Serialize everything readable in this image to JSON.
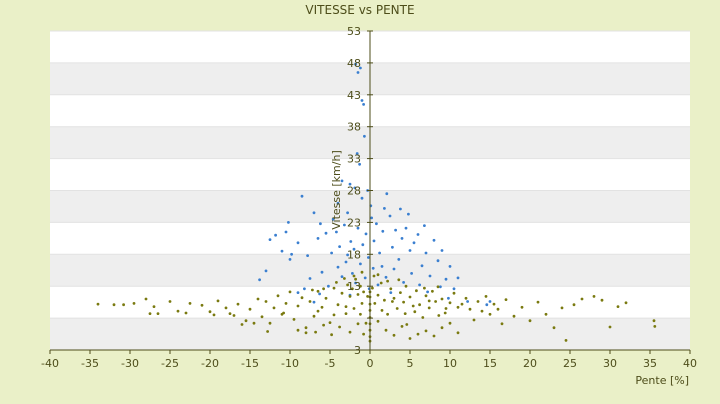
{
  "chart_data": {
    "type": "scatter",
    "title": "VITESSE vs PENTE",
    "xlabel": "Pente [%]",
    "ylabel": "Vitesse [km/h]",
    "xlim": [
      -40,
      40
    ],
    "ylim": [
      3,
      53
    ],
    "x_ticks": [
      -40,
      -35,
      -30,
      -25,
      -20,
      -15,
      -10,
      -5,
      0,
      5,
      10,
      15,
      20,
      25,
      30,
      35,
      40
    ],
    "y_ticks": [
      3,
      8,
      13,
      18,
      23,
      28,
      33,
      38,
      43,
      48,
      53
    ],
    "y_tick_labels": [
      "3",
      "",
      "13",
      "18",
      "23",
      "28",
      "33",
      "38",
      "43",
      "48",
      "53"
    ],
    "grid": "horizontal bands",
    "legend": "none",
    "colors": {
      "blue_series": "#3a7fd0",
      "olive_series": "#7a7a10",
      "band": "#eeeeee",
      "background": "#eaf0c8"
    },
    "series": [
      {
        "values": [
          [
            -1.8,
            47.8
          ],
          [
            -1.5,
            46.5
          ],
          [
            -1.2,
            47.2
          ],
          [
            -0.8,
            41.5
          ],
          [
            -1.0,
            42.1
          ],
          [
            -0.7,
            36.5
          ],
          [
            -1.6,
            33.8
          ],
          [
            -1.3,
            32.1
          ],
          [
            -2.5,
            29.0
          ],
          [
            -1.9,
            28.4
          ],
          [
            -8.5,
            27.1
          ],
          [
            -7.0,
            24.5
          ],
          [
            -10.2,
            23.0
          ],
          [
            -10.5,
            21.5
          ],
          [
            -11.8,
            21.0
          ],
          [
            -12.5,
            20.3
          ],
          [
            -9.0,
            19.8
          ],
          [
            -9.8,
            18.0
          ],
          [
            -11.0,
            18.5
          ],
          [
            -10.0,
            17.2
          ],
          [
            -7.8,
            17.8
          ],
          [
            -6.2,
            22.8
          ],
          [
            -6.5,
            20.5
          ],
          [
            -5.5,
            21.3
          ],
          [
            -4.0,
            26.0
          ],
          [
            -4.6,
            23.5
          ],
          [
            -4.2,
            21.5
          ],
          [
            -3.8,
            19.2
          ],
          [
            -3.2,
            22.6
          ],
          [
            -2.8,
            24.5
          ],
          [
            -2.4,
            20.0
          ],
          [
            -2.0,
            18.8
          ],
          [
            -1.5,
            22.1
          ],
          [
            -0.9,
            19.5
          ],
          [
            -0.5,
            21.2
          ],
          [
            -0.2,
            17.5
          ],
          [
            0.1,
            25.6
          ],
          [
            0.5,
            20.1
          ],
          [
            0.8,
            22.8
          ],
          [
            1.2,
            18.2
          ],
          [
            1.6,
            21.6
          ],
          [
            2.1,
            27.5
          ],
          [
            2.5,
            24.0
          ],
          [
            2.8,
            19.1
          ],
          [
            3.2,
            21.8
          ],
          [
            3.6,
            17.2
          ],
          [
            4.0,
            20.5
          ],
          [
            4.5,
            22.1
          ],
          [
            5.0,
            18.6
          ],
          [
            5.5,
            19.8
          ],
          [
            6.0,
            21.1
          ],
          [
            6.5,
            16.2
          ],
          [
            7.0,
            18.2
          ],
          [
            7.5,
            14.6
          ],
          [
            8.0,
            20.2
          ],
          [
            8.5,
            17.0
          ],
          [
            9.0,
            18.6
          ],
          [
            9.5,
            14.1
          ],
          [
            10.0,
            16.1
          ],
          [
            10.5,
            12.6
          ],
          [
            11.0,
            14.3
          ],
          [
            15.0,
            10.6
          ],
          [
            14.6,
            10.1
          ],
          [
            12.2,
            10.6
          ],
          [
            -4.0,
            16.0
          ],
          [
            -3.5,
            14.5
          ],
          [
            -3.0,
            16.8
          ],
          [
            -2.2,
            15.0
          ],
          [
            -1.8,
            13.5
          ],
          [
            -1.2,
            16.5
          ],
          [
            -0.6,
            14.3
          ],
          [
            0.4,
            15.8
          ],
          [
            1.0,
            13.2
          ],
          [
            1.5,
            16.1
          ],
          [
            2.0,
            14.4
          ],
          [
            3.0,
            15.7
          ],
          [
            4.2,
            13.6
          ],
          [
            5.2,
            15.0
          ],
          [
            6.2,
            13.2
          ],
          [
            7.2,
            12.1
          ],
          [
            -6.0,
            15.2
          ],
          [
            -7.5,
            14.2
          ],
          [
            -8.2,
            12.6
          ],
          [
            -9.0,
            12.0
          ],
          [
            -5.2,
            13.0
          ],
          [
            -13.0,
            15.4
          ],
          [
            -13.8,
            14.0
          ],
          [
            -4.8,
            18.2
          ],
          [
            -2.8,
            17.9
          ],
          [
            -1.0,
            26.8
          ],
          [
            0.2,
            23.7
          ],
          [
            1.8,
            25.2
          ],
          [
            -3.5,
            29.5
          ],
          [
            -0.3,
            28.0
          ],
          [
            3.8,
            25.1
          ],
          [
            4.8,
            24.3
          ],
          [
            6.8,
            22.5
          ],
          [
            2.6,
            12.0
          ],
          [
            -2.5,
            11.6
          ],
          [
            -0.1,
            12.6
          ],
          [
            8.8,
            12.9
          ],
          [
            9.8,
            11.1
          ],
          [
            -7.0,
            10.5
          ],
          [
            -6.3,
            11.8
          ]
        ]
      },
      {
        "values": [
          [
            -34.0,
            10.2
          ],
          [
            -32.0,
            10.1
          ],
          [
            -29.5,
            10.3
          ],
          [
            -28.0,
            11.0
          ],
          [
            -27.0,
            9.8
          ],
          [
            -26.5,
            8.7
          ],
          [
            -25.0,
            10.6
          ],
          [
            -24.0,
            9.1
          ],
          [
            -22.5,
            10.3
          ],
          [
            -21.0,
            10.0
          ],
          [
            -20.0,
            9.0
          ],
          [
            -19.0,
            10.7
          ],
          [
            -18.0,
            9.6
          ],
          [
            -17.0,
            8.4
          ],
          [
            -16.5,
            10.2
          ],
          [
            -15.5,
            7.6
          ],
          [
            -15.0,
            9.4
          ],
          [
            -14.0,
            11.0
          ],
          [
            -13.5,
            8.2
          ],
          [
            -13.0,
            10.6
          ],
          [
            -12.5,
            7.2
          ],
          [
            -12.0,
            9.6
          ],
          [
            -11.5,
            11.5
          ],
          [
            -11.0,
            8.6
          ],
          [
            -10.5,
            10.3
          ],
          [
            -10.0,
            12.1
          ],
          [
            -9.5,
            7.8
          ],
          [
            -9.0,
            9.9
          ],
          [
            -8.5,
            11.2
          ],
          [
            -8.0,
            6.5
          ],
          [
            -7.5,
            10.6
          ],
          [
            -7.0,
            8.3
          ],
          [
            -6.5,
            12.2
          ],
          [
            -6.0,
            9.7
          ],
          [
            -5.5,
            11.1
          ],
          [
            -5.0,
            7.3
          ],
          [
            -4.5,
            12.7
          ],
          [
            -4.0,
            10.1
          ],
          [
            -3.5,
            11.9
          ],
          [
            -3.0,
            8.7
          ],
          [
            -2.8,
            13.2
          ],
          [
            -2.5,
            11.4
          ],
          [
            -2.2,
            12.6
          ],
          [
            -2.0,
            9.5
          ],
          [
            -1.8,
            14.1
          ],
          [
            -1.5,
            11.7
          ],
          [
            -1.2,
            13.0
          ],
          [
            -1.0,
            10.3
          ],
          [
            -0.8,
            12.1
          ],
          [
            -0.5,
            7.2
          ],
          [
            -0.3,
            11.4
          ],
          [
            0.0,
            9.2
          ],
          [
            0.0,
            8.1
          ],
          [
            0.0,
            7.1
          ],
          [
            0.0,
            6.1
          ],
          [
            0.0,
            5.1
          ],
          [
            0.0,
            4.4
          ],
          [
            0.0,
            10.2
          ],
          [
            0.0,
            11.3
          ],
          [
            0.0,
            12.1
          ],
          [
            0.3,
            12.7
          ],
          [
            0.6,
            10.3
          ],
          [
            1.0,
            11.6
          ],
          [
            1.4,
            13.5
          ],
          [
            1.8,
            10.8
          ],
          [
            2.2,
            8.6
          ],
          [
            2.6,
            12.6
          ],
          [
            3.0,
            11.1
          ],
          [
            3.4,
            9.5
          ],
          [
            3.8,
            12.0
          ],
          [
            4.2,
            10.5
          ],
          [
            4.6,
            7.0
          ],
          [
            5.0,
            11.3
          ],
          [
            5.4,
            9.9
          ],
          [
            5.8,
            12.3
          ],
          [
            6.2,
            10.1
          ],
          [
            6.6,
            8.1
          ],
          [
            7.0,
            11.5
          ],
          [
            7.4,
            9.6
          ],
          [
            7.8,
            12.2
          ],
          [
            8.2,
            10.6
          ],
          [
            8.6,
            8.4
          ],
          [
            9.0,
            11.0
          ],
          [
            9.5,
            9.5
          ],
          [
            10.0,
            10.4
          ],
          [
            10.5,
            11.9
          ],
          [
            11.0,
            9.7
          ],
          [
            11.5,
            10.2
          ],
          [
            12.0,
            11.1
          ],
          [
            12.5,
            9.4
          ],
          [
            13.0,
            7.7
          ],
          [
            13.5,
            10.6
          ],
          [
            14.0,
            9.1
          ],
          [
            14.5,
            11.4
          ],
          [
            15.0,
            8.6
          ],
          [
            15.5,
            10.2
          ],
          [
            16.0,
            9.4
          ],
          [
            16.5,
            7.1
          ],
          [
            17.0,
            10.9
          ],
          [
            18.0,
            8.3
          ],
          [
            19.0,
            9.7
          ],
          [
            20.0,
            7.6
          ],
          [
            21.0,
            10.5
          ],
          [
            22.0,
            8.6
          ],
          [
            23.0,
            6.5
          ],
          [
            24.0,
            9.6
          ],
          [
            24.5,
            4.5
          ],
          [
            25.5,
            10.1
          ],
          [
            26.5,
            11.0
          ],
          [
            28.0,
            11.4
          ],
          [
            29.0,
            10.8
          ],
          [
            30.0,
            6.6
          ],
          [
            31.0,
            9.8
          ],
          [
            32.0,
            10.4
          ],
          [
            35.5,
            7.6
          ],
          [
            35.6,
            6.7
          ],
          [
            -30.8,
            10.1
          ],
          [
            -27.5,
            8.7
          ],
          [
            -23.0,
            8.8
          ],
          [
            -19.5,
            8.5
          ],
          [
            -14.5,
            7.2
          ],
          [
            -9.0,
            6.1
          ],
          [
            -8.0,
            5.7
          ],
          [
            -6.8,
            5.8
          ],
          [
            -5.8,
            6.9
          ],
          [
            -4.8,
            5.4
          ],
          [
            -3.8,
            6.6
          ],
          [
            -2.5,
            5.8
          ],
          [
            -1.5,
            7.1
          ],
          [
            -0.8,
            5.5
          ],
          [
            1.0,
            7.5
          ],
          [
            2.0,
            6.1
          ],
          [
            3.0,
            5.3
          ],
          [
            4.0,
            6.7
          ],
          [
            5.0,
            4.8
          ],
          [
            6.0,
            5.5
          ],
          [
            7.0,
            6.0
          ],
          [
            8.0,
            5.2
          ],
          [
            9.0,
            6.5
          ],
          [
            10.0,
            7.2
          ],
          [
            11.0,
            5.7
          ],
          [
            -17.5,
            8.7
          ],
          [
            -16.0,
            7.0
          ],
          [
            -12.8,
            5.9
          ],
          [
            -10.8,
            8.8
          ],
          [
            -2.0,
            14.6
          ],
          [
            -1.0,
            15.2
          ],
          [
            1.0,
            14.8
          ],
          [
            2.2,
            13.8
          ],
          [
            4.5,
            13.0
          ],
          [
            -4.2,
            13.6
          ],
          [
            -3.2,
            14.2
          ],
          [
            -5.8,
            12.6
          ],
          [
            -7.2,
            12.4
          ],
          [
            6.8,
            12.7
          ],
          [
            8.5,
            12.9
          ],
          [
            3.6,
            14.0
          ],
          [
            0.5,
            14.6
          ],
          [
            -6.5,
            9.1
          ],
          [
            -4.5,
            8.5
          ],
          [
            -3.0,
            9.8
          ],
          [
            -1.2,
            8.6
          ],
          [
            1.5,
            9.2
          ],
          [
            2.8,
            10.6
          ],
          [
            4.4,
            8.7
          ],
          [
            5.6,
            9.0
          ],
          [
            7.4,
            10.7
          ],
          [
            9.4,
            8.8
          ]
        ]
      }
    ]
  }
}
